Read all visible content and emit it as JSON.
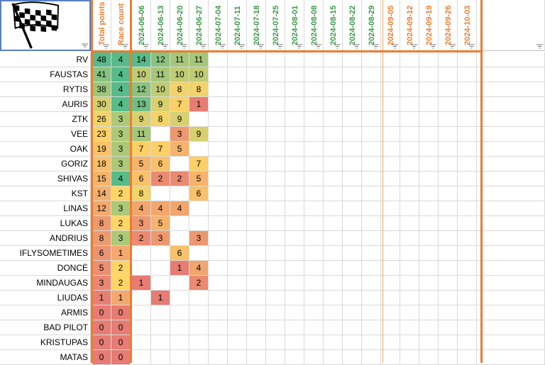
{
  "header": {
    "total_points": "Total points",
    "race_count": "Race count",
    "dates": [
      "2024-06-06",
      "2024-06-13",
      "2024-06-20",
      "2024-06-27",
      "2024-07-04",
      "2024-07-11",
      "2024-07-18",
      "2024-07-25",
      "2024-08-01",
      "2024-08-08",
      "2024-08-15",
      "2024-08-22",
      "2024-08-29",
      "2024-09-05",
      "2024-09-12",
      "2024-09-19",
      "2024-09-26",
      "2024-10-03"
    ],
    "flag_icon": "checkered-flag-icon"
  },
  "colors": {
    "accent_orange": "#ec7c30",
    "date_green": "#3a9a46",
    "date_orange": "#ec7c30",
    "score_high": "#57bb8a",
    "score_mid": "#ffd666",
    "score_low": "#e67c73"
  },
  "rows": [
    {
      "name": "RV",
      "total": "48",
      "count": "4",
      "races": [
        "14",
        "12",
        "11",
        "11"
      ]
    },
    {
      "name": "FAUSTAS",
      "total": "41",
      "count": "4",
      "races": [
        "10",
        "11",
        "10",
        "10"
      ]
    },
    {
      "name": "RYTIS",
      "total": "38",
      "count": "4",
      "races": [
        "12",
        "10",
        "8",
        "8"
      ]
    },
    {
      "name": "AURIS",
      "total": "30",
      "count": "4",
      "races": [
        "13",
        "9",
        "7",
        "1"
      ]
    },
    {
      "name": "ZTK",
      "total": "26",
      "count": "3",
      "races": [
        "9",
        "8",
        "9",
        ""
      ]
    },
    {
      "name": "VEE",
      "total": "23",
      "count": "3",
      "races": [
        "11",
        "",
        "3",
        "9"
      ]
    },
    {
      "name": "OAK",
      "total": "19",
      "count": "3",
      "races": [
        "7",
        "7",
        "5",
        ""
      ]
    },
    {
      "name": "GORIZ",
      "total": "18",
      "count": "3",
      "races": [
        "5",
        "6",
        "",
        "7"
      ]
    },
    {
      "name": "SHIVAS",
      "total": "15",
      "count": "4",
      "races": [
        "6",
        "2",
        "2",
        "5"
      ]
    },
    {
      "name": "KST",
      "total": "14",
      "count": "2",
      "races": [
        "8",
        "",
        "",
        "6"
      ]
    },
    {
      "name": "LINAS",
      "total": "12",
      "count": "3",
      "races": [
        "4",
        "4",
        "4",
        ""
      ]
    },
    {
      "name": "LUKAS",
      "total": "8",
      "count": "2",
      "races": [
        "3",
        "5",
        "",
        ""
      ]
    },
    {
      "name": "ANDRIUS",
      "total": "8",
      "count": "3",
      "races": [
        "2",
        "3",
        "",
        "3"
      ]
    },
    {
      "name": "IFLYSOMETIMES",
      "total": "6",
      "count": "1",
      "races": [
        "",
        "",
        "6",
        ""
      ]
    },
    {
      "name": "DONCĖ",
      "total": "5",
      "count": "2",
      "races": [
        "",
        "",
        "1",
        "4"
      ]
    },
    {
      "name": "MINDAUGAS",
      "total": "3",
      "count": "2",
      "races": [
        "1",
        "",
        "",
        "2"
      ]
    },
    {
      "name": "LIUDAS",
      "total": "1",
      "count": "1",
      "races": [
        "",
        "1",
        "",
        ""
      ]
    },
    {
      "name": "ARMIS",
      "total": "0",
      "count": "0",
      "races": [
        "",
        "",
        "",
        ""
      ]
    },
    {
      "name": "BAD PILOT",
      "total": "0",
      "count": "0",
      "races": [
        "",
        "",
        "",
        ""
      ]
    },
    {
      "name": "KRISTUPAS",
      "total": "0",
      "count": "0",
      "races": [
        "",
        "",
        "",
        ""
      ]
    },
    {
      "name": "MATAS",
      "total": "0",
      "count": "0",
      "races": [
        "",
        "",
        "",
        ""
      ]
    }
  ]
}
